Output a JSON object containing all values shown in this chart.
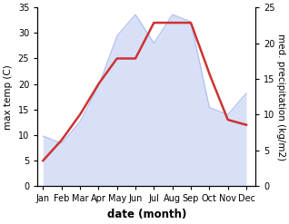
{
  "months": [
    "Jan",
    "Feb",
    "Mar",
    "Apr",
    "May",
    "Jun",
    "Jul",
    "Aug",
    "Sep",
    "Oct",
    "Nov",
    "Dec"
  ],
  "month_x": [
    1,
    2,
    3,
    4,
    5,
    6,
    7,
    8,
    9,
    10,
    11,
    12
  ],
  "temp_data": [
    5,
    9,
    14,
    20,
    25,
    25,
    32,
    32,
    32,
    22,
    13,
    12
  ],
  "precip_data": [
    7,
    6,
    9,
    14,
    21,
    24,
    20,
    24,
    23,
    11,
    10,
    13
  ],
  "temp_color": "#cc3333",
  "precip_color": "#aabbee",
  "background_color": "#ffffff",
  "left_ylim": [
    0,
    35
  ],
  "right_ylim": [
    0,
    25
  ],
  "left_ylabel": "max temp (C)",
  "right_ylabel": "med. precipitation (kg/m2)",
  "xlabel": "date (month)",
  "left_yticks": [
    0,
    5,
    10,
    15,
    20,
    25,
    30,
    35
  ],
  "right_yticks": [
    0,
    5,
    10,
    15,
    20,
    25
  ],
  "temp_linewidth": 1.8,
  "label_fontsize": 7.5,
  "tick_fontsize": 7.0,
  "xlabel_fontsize": 8.5
}
